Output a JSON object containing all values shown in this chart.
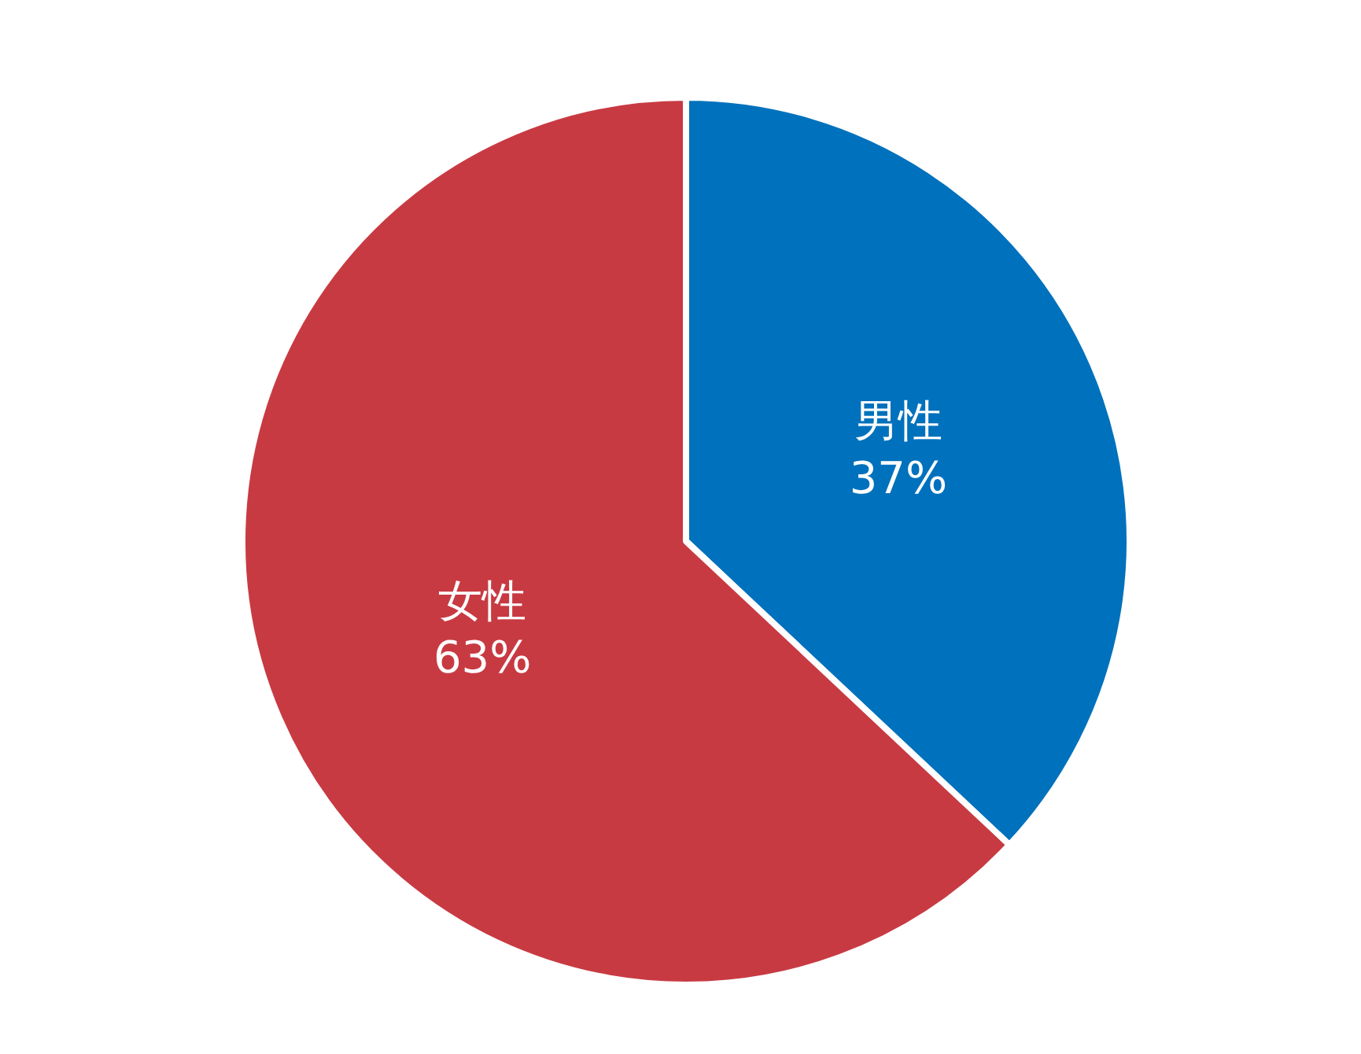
{
  "chart_data": {
    "type": "pie",
    "categories": [
      "男性",
      "女性"
    ],
    "values": [
      37,
      63
    ],
    "value_labels": [
      "37%",
      "63%"
    ],
    "colors": [
      "#0071bc",
      "#c83a42"
    ],
    "legend": false
  }
}
